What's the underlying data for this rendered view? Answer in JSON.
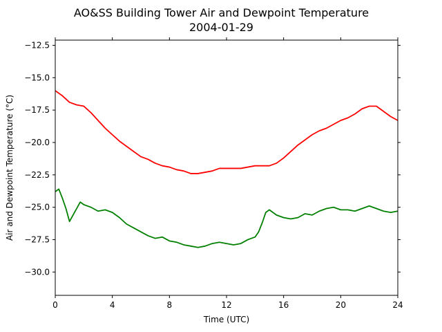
{
  "chart_data": {
    "type": "line",
    "title": "AO&SS Building Tower Air and Dewpoint Temperature",
    "subtitle": "2004-01-29",
    "xlabel": "Time (UTC)",
    "ylabel": "Air and Dewpoint Temperature (°C)",
    "xlim": [
      0,
      24
    ],
    "ylim": [
      -31.8,
      -12.1
    ],
    "xticks": [
      0,
      4,
      8,
      12,
      16,
      20,
      24
    ],
    "yticks": [
      -30.0,
      -27.5,
      -25.0,
      -22.5,
      -20.0,
      -17.5,
      -15.0,
      -12.5
    ],
    "ytick_labels": [
      "−30.0",
      "−27.5",
      "−25.0",
      "−22.5",
      "−20.0",
      "−17.5",
      "−15.0",
      "−12.5"
    ],
    "grid": false,
    "series": [
      {
        "color": "#ff0000",
        "x": [
          0,
          0.5,
          1,
          1.5,
          2,
          2.5,
          3,
          3.5,
          4,
          4.5,
          5,
          5.5,
          6,
          6.5,
          7,
          7.5,
          8,
          8.5,
          9,
          9.5,
          10,
          10.5,
          11,
          11.5,
          12,
          12.5,
          13,
          13.5,
          14,
          14.5,
          15,
          15.5,
          16,
          16.5,
          17,
          17.5,
          18,
          18.5,
          19,
          19.5,
          20,
          20.5,
          21,
          21.5,
          22,
          22.5,
          23,
          23.5,
          24
        ],
        "y": [
          -16.0,
          -16.4,
          -16.9,
          -17.1,
          -17.2,
          -17.7,
          -18.3,
          -18.9,
          -19.4,
          -19.9,
          -20.3,
          -20.7,
          -21.1,
          -21.3,
          -21.6,
          -21.8,
          -21.9,
          -22.1,
          -22.2,
          -22.4,
          -22.4,
          -22.3,
          -22.2,
          -22.0,
          -22.0,
          -22.0,
          -22.0,
          -21.9,
          -21.8,
          -21.8,
          -21.8,
          -21.6,
          -21.2,
          -20.7,
          -20.2,
          -19.8,
          -19.4,
          -19.1,
          -18.9,
          -18.6,
          -18.3,
          -18.1,
          -17.8,
          -17.4,
          -17.2,
          -17.2,
          -17.6,
          -18.0,
          -18.3
        ]
      },
      {
        "color": "#008000",
        "x": [
          0,
          0.25,
          0.5,
          0.75,
          1,
          1.25,
          1.5,
          1.75,
          2,
          2.5,
          3,
          3.5,
          4,
          4.5,
          5,
          5.5,
          6,
          6.5,
          7,
          7.5,
          8,
          8.5,
          9,
          9.5,
          10,
          10.5,
          11,
          11.5,
          12,
          12.5,
          13,
          13.5,
          14,
          14.25,
          14.5,
          14.75,
          15,
          15.5,
          16,
          16.5,
          17,
          17.5,
          18,
          18.5,
          19,
          19.5,
          20,
          20.5,
          21,
          21.5,
          22,
          22.5,
          23,
          23.5,
          24
        ],
        "y": [
          -23.8,
          -23.6,
          -24.3,
          -25.1,
          -26.1,
          -25.6,
          -25.1,
          -24.6,
          -24.8,
          -25.0,
          -25.3,
          -25.2,
          -25.4,
          -25.8,
          -26.3,
          -26.6,
          -26.9,
          -27.2,
          -27.4,
          -27.3,
          -27.6,
          -27.7,
          -27.9,
          -28.0,
          -28.1,
          -28.0,
          -27.8,
          -27.7,
          -27.8,
          -27.9,
          -27.8,
          -27.5,
          -27.3,
          -26.9,
          -26.2,
          -25.4,
          -25.2,
          -25.6,
          -25.8,
          -25.9,
          -25.8,
          -25.5,
          -25.6,
          -25.3,
          -25.1,
          -25.0,
          -25.2,
          -25.2,
          -25.3,
          -25.1,
          -24.9,
          -25.1,
          -25.3,
          -25.4,
          -25.3
        ]
      }
    ]
  }
}
